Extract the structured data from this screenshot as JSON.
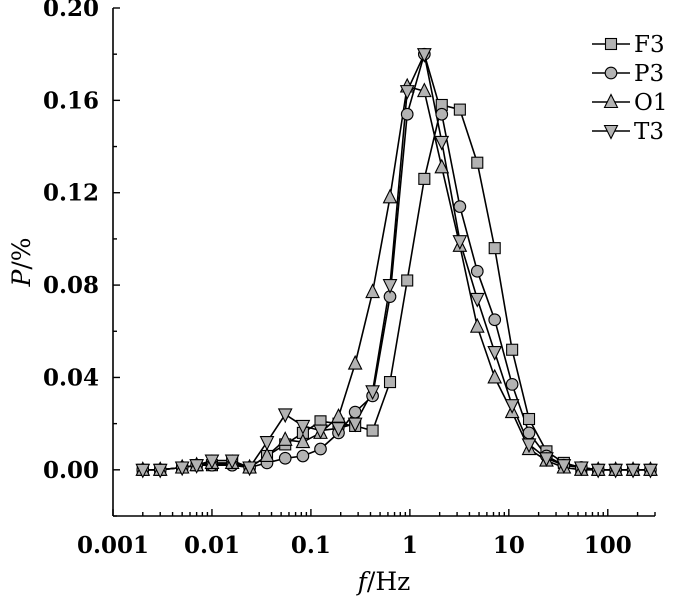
{
  "chart_data": {
    "type": "line",
    "x_scale": "log",
    "xlabel_italic": "f",
    "xlabel_rest": "/Hz",
    "ylabel_italic": "P",
    "ylabel_rest": "/%",
    "xlim": [
      0.001,
      300
    ],
    "ylim": [
      -0.02,
      0.2
    ],
    "x_ticks": [
      0.001,
      0.01,
      0.1,
      1,
      10,
      100
    ],
    "x_tick_labels": [
      "0.001",
      "0.01",
      "0.1",
      "1",
      "10",
      "100"
    ],
    "y_ticks": [
      0.0,
      0.04,
      0.08,
      0.12,
      0.16,
      0.2
    ],
    "y_tick_labels": [
      "0.00",
      "0.04",
      "0.08",
      "0.12",
      "0.16",
      "0.20"
    ],
    "grid": false,
    "legend_position": "top-right",
    "x": [
      0.002,
      0.003,
      0.005,
      0.007,
      0.01,
      0.016,
      0.024,
      0.036,
      0.055,
      0.083,
      0.125,
      0.19,
      0.28,
      0.42,
      0.63,
      0.94,
      1.4,
      2.1,
      3.2,
      4.8,
      7.2,
      10.8,
      16,
      24,
      36,
      54,
      80,
      120,
      180,
      270
    ],
    "series": [
      {
        "name": "F3",
        "marker": "square",
        "values": [
          0.0,
          0.0,
          0.001,
          0.002,
          0.002,
          0.003,
          0.001,
          0.006,
          0.011,
          0.016,
          0.021,
          0.02,
          0.019,
          0.017,
          0.038,
          0.082,
          0.126,
          0.158,
          0.156,
          0.133,
          0.096,
          0.052,
          0.022,
          0.008,
          0.003,
          0.001,
          0.0,
          0.0,
          0.0,
          0.0
        ]
      },
      {
        "name": "P3",
        "marker": "circle",
        "values": [
          0.0,
          0.0,
          0.001,
          0.002,
          0.002,
          0.002,
          0.001,
          0.003,
          0.005,
          0.006,
          0.009,
          0.016,
          0.025,
          0.032,
          0.075,
          0.154,
          0.18,
          0.154,
          0.114,
          0.086,
          0.065,
          0.037,
          0.016,
          0.006,
          0.002,
          0.001,
          0.0,
          0.0,
          0.0,
          0.0
        ]
      },
      {
        "name": "O1",
        "marker": "triangle-up",
        "values": [
          0.0,
          0.0,
          0.001,
          0.002,
          0.003,
          0.003,
          0.001,
          0.006,
          0.013,
          0.012,
          0.016,
          0.023,
          0.046,
          0.077,
          0.118,
          0.166,
          0.164,
          0.131,
          0.097,
          0.062,
          0.04,
          0.025,
          0.009,
          0.004,
          0.001,
          0.0,
          0.0,
          0.0,
          0.0,
          0.0
        ]
      },
      {
        "name": "T3",
        "marker": "triangle-down",
        "values": [
          0.0,
          0.0,
          0.001,
          0.002,
          0.004,
          0.004,
          0.001,
          0.012,
          0.024,
          0.019,
          0.017,
          0.018,
          0.02,
          0.034,
          0.08,
          0.164,
          0.18,
          0.142,
          0.099,
          0.074,
          0.051,
          0.028,
          0.011,
          0.005,
          0.002,
          0.001,
          0.0,
          0.0,
          0.0,
          0.0
        ]
      }
    ],
    "colors": {
      "marker_fill": "#b3b3b3",
      "line": "#000000"
    }
  }
}
